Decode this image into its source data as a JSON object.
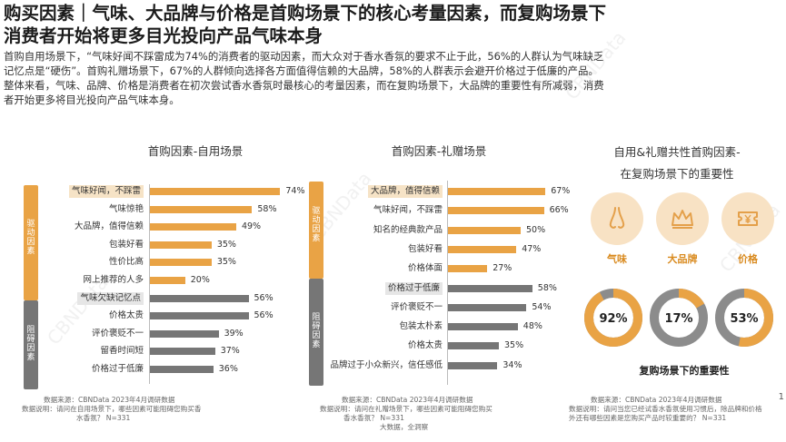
{
  "header": {
    "title_line1": "购买因素｜气味、大品牌与价格是首购场景下的核心考量因素，而复购场景下",
    "title_line2": "消费者开始将更多目光投向产品气味本身"
  },
  "intro": {
    "lines": [
      "首购自用场景下，“气味好闻不踩雷成为74%的消费者的驱动因素，而大众对于香水香氛的要求不止于此，56%的人群认为气味缺乏",
      "记忆点是“硬伤”。首购礼赠场景下，67%的人群倾向选择各方面值得信赖的大品牌，58%的人群表示会避开价格过于低廉的产品。",
      "整体来看，气味、品牌、价格是消费者在初次尝试香水香氛时最核心的考量因素，而在复购场景下，大品牌的重要性有所减弱，消费",
      "者开始更多将目光投向产品气味本身。"
    ]
  },
  "colors": {
    "drive": "#e9a345",
    "barrier": "#767676",
    "highlight": "#f6e3c6",
    "donut_track": "#8c8c8c",
    "icon_bg": "#f8e2c4",
    "icon_fg": "#e4a04a"
  },
  "panel_self": {
    "title": "首购因素-自用场景",
    "band_drive": "驱动因素",
    "band_barrier": "阻碍因素",
    "footnote": [
      "数据来源：CBNData 2023年4月调研数据",
      "数据说明：请问在自用场景下，哪些因素可能阻碍您购买香",
      "水香氛？ N=331"
    ]
  },
  "panel_gift": {
    "title": "首购因素-礼赠场景",
    "band_drive": "驱动因素",
    "band_barrier": "阻碍因素",
    "footnote": [
      "数据来源：CBNData 2023年4月调研数据",
      "数据说明：请问在礼赠场景下，哪些因素可能阻碍您购买",
      "香水香氛？ N=331",
      "大数据，全洞察"
    ]
  },
  "panel_right": {
    "title_line1": "自用&礼赠共性首购因素-",
    "title_line2": "在复购场景下的重要性",
    "icons": [
      {
        "name": "nose-icon",
        "label": "气味"
      },
      {
        "name": "crown-icon",
        "label": "大品牌"
      },
      {
        "name": "price-tag-icon",
        "label": "价格"
      }
    ],
    "caption": "复购场景下的重要性",
    "footnote": [
      "数据来源：CBNData 2023年4月调研数据",
      "数据说明：请问当您已经试香水香氛使用习惯后，除品牌和价格",
      "外还有哪些因素是您购买产品时较重要的？ N=331"
    ]
  },
  "page_number": "1",
  "watermark": "CBNData",
  "chart_data": [
    {
      "type": "bar",
      "orientation": "horizontal",
      "title": "首购因素-自用场景",
      "unit": "%",
      "categories": [
        "气味好闻，不踩雷",
        "气味惊艳",
        "大品牌，值得信赖",
        "包装好看",
        "性价比高",
        "网上推荐的人多",
        "气味欠缺记忆点",
        "价格太贵",
        "评价褒贬不一",
        "留香时间短",
        "价格过于低廉"
      ],
      "values": [
        74,
        58,
        49,
        35,
        35,
        20,
        56,
        56,
        39,
        37,
        36
      ],
      "group": [
        "驱动因素",
        "驱动因素",
        "驱动因素",
        "驱动因素",
        "驱动因素",
        "驱动因素",
        "阻碍因素",
        "阻碍因素",
        "阻碍因素",
        "阻碍因素",
        "阻碍因素"
      ],
      "highlighted": [
        "气味好闻，不踩雷",
        "气味欠缺记忆点"
      ],
      "xlim": [
        0,
        80
      ]
    },
    {
      "type": "bar",
      "orientation": "horizontal",
      "title": "首购因素-礼赠场景",
      "unit": "%",
      "categories": [
        "大品牌，值得信赖",
        "气味好闻，不踩雷",
        "知名的经典款产品",
        "包装好看",
        "价格体面",
        "价格过于低廉",
        "评价褒贬不一",
        "包装太朴素",
        "价格太贵",
        "品牌过于小众新兴，信任感低"
      ],
      "values": [
        67,
        66,
        50,
        47,
        27,
        58,
        54,
        48,
        35,
        34
      ],
      "group": [
        "驱动因素",
        "驱动因素",
        "驱动因素",
        "驱动因素",
        "驱动因素",
        "阻碍因素",
        "阻碍因素",
        "阻碍因素",
        "阻碍因素",
        "阻碍因素"
      ],
      "highlighted": [
        "大品牌，值得信赖",
        "价格过于低廉"
      ],
      "xlim": [
        0,
        80
      ]
    },
    {
      "type": "pie",
      "title": "复购场景下的重要性",
      "unit": "%",
      "categories": [
        "气味",
        "大品牌",
        "价格"
      ],
      "values": [
        92,
        17,
        53
      ]
    }
  ]
}
